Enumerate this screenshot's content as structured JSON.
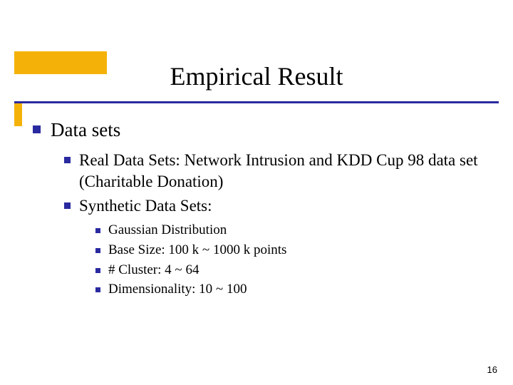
{
  "slide": {
    "title": "Empirical Result",
    "page_number": "16",
    "colors": {
      "accent": "#f4b209",
      "bullet": "#2a2aa0",
      "underline": "#2a2aa0",
      "background": "#ffffff",
      "text": "#000000"
    },
    "fonts": {
      "title_family": "Times New Roman",
      "body_family": "Times New Roman",
      "pagenum_family": "Arial",
      "title_size_pt": 36,
      "l1_size_pt": 27,
      "l2_size_pt": 23,
      "l3_size_pt": 19,
      "pagenum_size_pt": 13
    },
    "bullets_l1": [
      {
        "text": "Data sets"
      }
    ],
    "bullets_l2": [
      {
        "text": "Real Data Sets: Network Intrusion  and KDD Cup 98 data set (Charitable Donation)"
      },
      {
        "text": "Synthetic Data Sets:"
      }
    ],
    "bullets_l3": [
      {
        "text": "Gaussian Distribution"
      },
      {
        "text": "Base Size: 100 k ~ 1000 k points"
      },
      {
        "text": "# Cluster: 4 ~ 64"
      },
      {
        "text": "Dimensionality: 10 ~ 100"
      }
    ]
  }
}
